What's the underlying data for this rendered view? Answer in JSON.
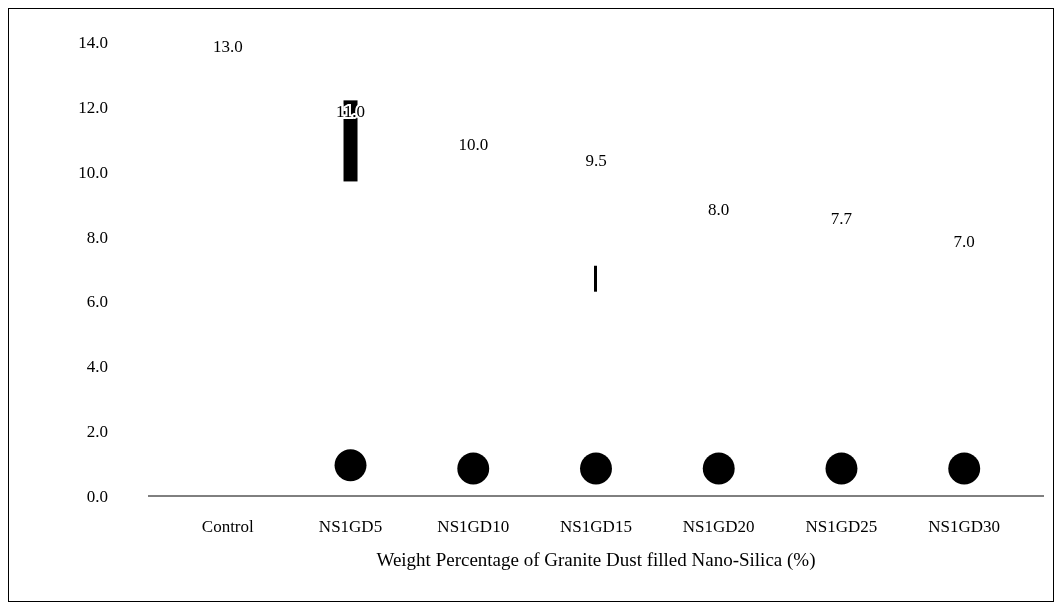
{
  "chart_data": {
    "type": "scatter",
    "xlabel": "Weight Percentage of Granite Dust filled Nano-Silica  (%)",
    "categories": [
      "Control",
      "NS1GD5",
      "NS1GD10",
      "NS1GD15",
      "NS1GD20",
      "NS1GD25",
      "NS1GD30"
    ],
    "series": [
      {
        "color": "#000000",
        "x": [
          "NS1GD5",
          "NS1GD10",
          "NS1GD15",
          "NS1GD20",
          "NS1GD25",
          "NS1GD30"
        ],
        "values": [
          0.95,
          0.85,
          0.85,
          0.85,
          0.85,
          0.85
        ]
      }
    ],
    "annotations": [
      "13.0",
      "11.0",
      "10.0",
      "9.5",
      "8.0",
      "7.7",
      "7.0"
    ],
    "marker": "circle",
    "ylim": [
      0,
      14
    ],
    "yticks": [
      {
        "value": 0,
        "label": "0.0"
      },
      {
        "value": 2,
        "label": "2.0"
      },
      {
        "value": 4,
        "label": "4.0"
      },
      {
        "value": 6,
        "label": "6.0"
      },
      {
        "value": 8,
        "label": "8.0"
      },
      {
        "value": 10,
        "label": "10.0"
      },
      {
        "value": 12,
        "label": "12.0"
      },
      {
        "value": 14,
        "label": "14.0"
      }
    ],
    "grid": false
  }
}
